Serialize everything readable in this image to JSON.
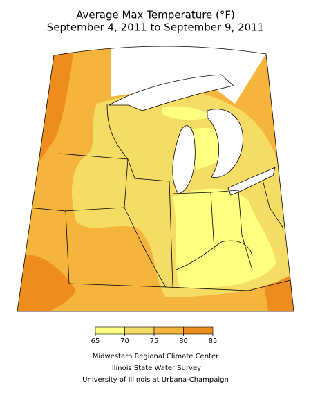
{
  "title": [
    "Average Max Temperature (°F)",
    "September 4, 2011 to September 9, 2011"
  ],
  "legend": {
    "ticks": [
      65,
      70,
      75,
      80,
      85
    ],
    "colors": [
      "#ffff80",
      "#f5dc64",
      "#f5b43c",
      "#ee8c1e"
    ]
  },
  "credits": [
    "Midwestern Regional Climate Center",
    "Illinois State Water Survey",
    "University of Illinois at Urbana-Champaign"
  ]
}
